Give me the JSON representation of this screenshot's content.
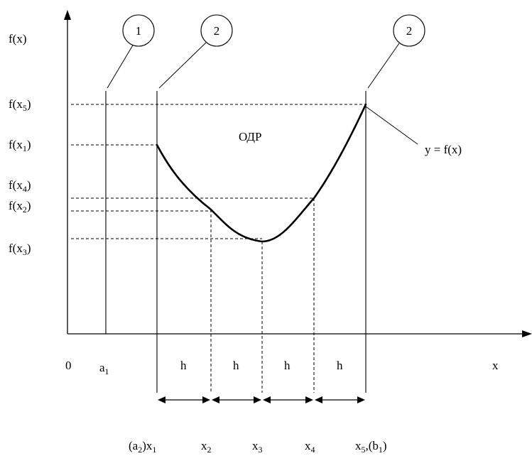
{
  "y_axis_label": "f(x)",
  "x_axis_label": "x",
  "origin_label": "0",
  "region_label": "ОДР",
  "curve_label": "y = f(x)",
  "y_ticks": [
    {
      "base": "f(x",
      "sub": "5",
      "tail": ")"
    },
    {
      "base": "f(x",
      "sub": "1",
      "tail": ")"
    },
    {
      "base": "f(x",
      "sub": "4",
      "tail": ")"
    },
    {
      "base": "f(x",
      "sub": "2",
      "tail": ")"
    },
    {
      "base": "f(x",
      "sub": "3",
      "tail": ")"
    }
  ],
  "a1": {
    "base": "a",
    "sub": "1"
  },
  "step_label": "h",
  "bottom_labels": [
    {
      "parts": [
        [
          "(a",
          ""
        ],
        [
          "2",
          "sub"
        ],
        [
          ")x",
          ""
        ],
        [
          "1",
          "sub"
        ]
      ]
    },
    {
      "parts": [
        [
          "x",
          ""
        ],
        [
          "2",
          "sub"
        ]
      ]
    },
    {
      "parts": [
        [
          "x",
          ""
        ],
        [
          "3",
          "sub"
        ]
      ]
    },
    {
      "parts": [
        [
          "x",
          ""
        ],
        [
          "4",
          "sub"
        ]
      ]
    },
    {
      "parts": [
        [
          "x",
          ""
        ],
        [
          "5",
          "sub"
        ],
        [
          ",(b",
          ""
        ],
        [
          "1",
          "sub"
        ],
        [
          ")",
          ""
        ]
      ]
    }
  ],
  "callouts": [
    "1",
    "2",
    "2"
  ]
}
